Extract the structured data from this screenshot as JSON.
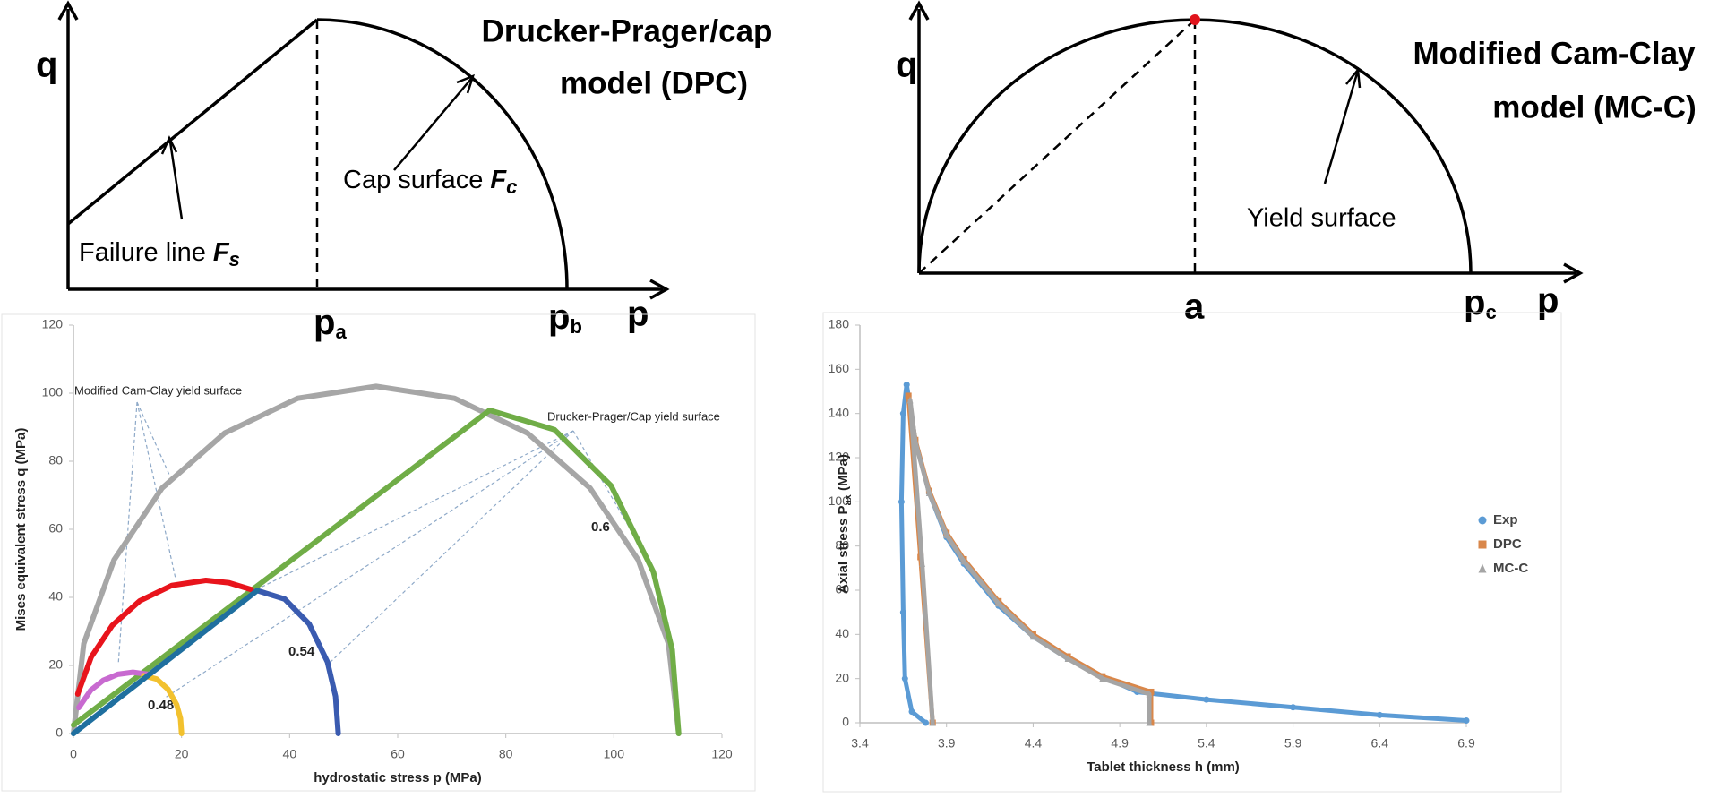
{
  "diagrams": [
    {
      "axis_y": "q",
      "axis_x": "p",
      "title_lines": [
        "Drucker-Prager/cap",
        "model (DPC)"
      ],
      "cap_label": {
        "text": "Cap surface ",
        "symbol": "F",
        "sub": "c"
      },
      "failure_label": {
        "text": "Failure line ",
        "symbol": "F",
        "sub": "s"
      },
      "point_a": {
        "symbol": "p",
        "sub": "a"
      },
      "point_b": {
        "symbol": "p",
        "sub": "b"
      }
    },
    {
      "axis_y": "q",
      "axis_x": "p",
      "title_lines": [
        "Modified Cam-Clay",
        "model (MC-C)"
      ],
      "yield_label": "Yield surface",
      "point_a": "a",
      "point_c": {
        "symbol": "p",
        "sub": "c"
      }
    }
  ],
  "chart_data": [
    {
      "type": "line",
      "xlabel": "hydrostatic stress p (MPa)",
      "ylabel": "Mises equivalent stress q  (MPa)",
      "xlim": [
        0,
        120
      ],
      "ylim": [
        0,
        120
      ],
      "xticks": [
        0,
        20,
        40,
        60,
        80,
        100,
        120
      ],
      "yticks": [
        0,
        20,
        40,
        60,
        80,
        100,
        120
      ],
      "annotations": [
        "Modified Cam-Clay yield surface",
        "Drucker-Prager/Cap  yield surface",
        "0.6",
        "0.54",
        "0.48"
      ],
      "series": [
        {
          "color": "#a6a6a6",
          "x": [
            0,
            1.9,
            7.5,
            16.4,
            28,
            41.5,
            56,
            70.5,
            84,
            95.6,
            104.5,
            110.1,
            112
          ],
          "values": [
            0,
            26.4,
            51,
            72.1,
            88.3,
            98.5,
            102,
            98.5,
            88.3,
            72.1,
            51,
            26.4,
            0
          ]
        },
        {
          "color": "#70ad47",
          "x": [
            0,
            77,
            89,
            99.5,
            107.3,
            110.8,
            112
          ],
          "values": [
            2.5,
            95,
            89.3,
            72.8,
            47.5,
            24.6,
            0
          ]
        },
        {
          "color": "#e8141c",
          "x": [
            0.8,
            3.3,
            7.2,
            12.3,
            18.2,
            24.5,
            28.8,
            32.9
          ],
          "values": [
            11.6,
            22.5,
            31.8,
            39,
            43.5,
            45,
            44.3,
            42.3
          ]
        },
        {
          "color": "#3a5bb0",
          "x": [
            34,
            39.1,
            43.6,
            47,
            48.5,
            49
          ],
          "values": [
            42,
            39.5,
            32.2,
            21,
            10.9,
            0
          ]
        },
        {
          "color": "#c86ad0",
          "x": [
            1,
            3.2,
            5.5,
            8.2,
            11,
            13.8
          ],
          "values": [
            7.6,
            12.7,
            15.6,
            17.4,
            18,
            17.4
          ]
        },
        {
          "color": "#f2c12e",
          "x": [
            13,
            15.4,
            17.5,
            19.1,
            19.8,
            20
          ],
          "values": [
            17,
            16,
            13,
            8.5,
            4.4,
            0
          ]
        },
        {
          "color": "#1f6f9f",
          "x": [
            0,
            34
          ],
          "values": [
            0,
            42
          ]
        }
      ]
    },
    {
      "type": "scatter",
      "xlabel": "Tablet thickness h (mm)",
      "ylabel": {
        "main": "Axial stress P",
        "sub": "ax",
        "unit": " (MPa)"
      },
      "xlim": [
        3.4,
        6.9
      ],
      "ylim": [
        0,
        180
      ],
      "xticks": [
        3.4,
        3.9,
        4.4,
        4.9,
        5.4,
        5.9,
        6.4,
        6.9
      ],
      "yticks": [
        0,
        20,
        40,
        60,
        80,
        100,
        120,
        140,
        160,
        180
      ],
      "legend": "right",
      "series": [
        {
          "name": "Exp",
          "color": "#5b9bd5",
          "marker": "circle",
          "x": [
            6.9,
            6.4,
            5.9,
            5.4,
            5.0,
            4.8,
            4.6,
            4.4,
            4.2,
            4.0,
            3.9,
            3.8,
            3.72,
            3.68,
            3.67,
            3.65,
            3.64,
            3.65,
            3.66,
            3.7,
            3.78
          ],
          "values": [
            1,
            3.5,
            7,
            10.5,
            14,
            21,
            29,
            39,
            53,
            72,
            84,
            104,
            128,
            148,
            153,
            140,
            100,
            50,
            20,
            5,
            0
          ]
        },
        {
          "name": "DPC",
          "color": "#d9874a",
          "marker": "square",
          "x": [
            5.08,
            5.08,
            4.8,
            4.6,
            4.4,
            4.2,
            4.0,
            3.9,
            3.8,
            3.72,
            3.68,
            3.75,
            3.82
          ],
          "values": [
            0,
            14,
            21,
            30,
            40,
            55,
            74,
            86,
            105,
            128,
            148,
            75,
            0
          ]
        },
        {
          "name": "MC-C",
          "color": "#a5a5a5",
          "marker": "triangle",
          "x": [
            5.07,
            5.07,
            4.8,
            4.6,
            4.4,
            4.2,
            4.0,
            3.9,
            3.8,
            3.72,
            3.69,
            3.76,
            3.82
          ],
          "values": [
            0,
            13,
            20,
            29,
            39,
            54,
            73,
            85,
            104,
            127,
            146,
            72,
            0
          ]
        }
      ]
    }
  ]
}
